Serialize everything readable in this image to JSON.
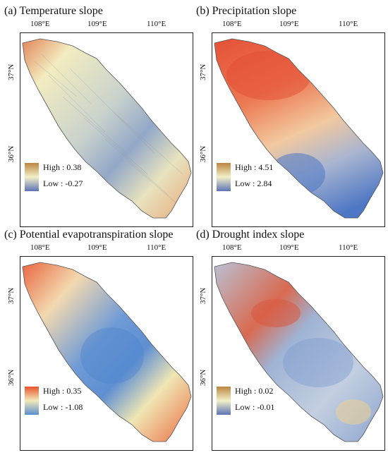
{
  "panels": [
    {
      "title": "(a) Temperature slope",
      "legend": {
        "high_label": "High",
        "high_value": "0.38",
        "low_label": "Low",
        "low_value": "-0.27",
        "ramp_colors": [
          "#b9853f",
          "#f3f0c8",
          "#5d74b6"
        ]
      },
      "longitudes": [
        "108°E",
        "109°E",
        "110°E"
      ],
      "latitudes": [
        "37°N",
        "36°N"
      ]
    },
    {
      "title": "(b) Precipitation slope",
      "legend": {
        "high_label": "High",
        "high_value": "4.51",
        "low_label": "Low",
        "low_value": "2.84",
        "ramp_colors": [
          "#b9853f",
          "#f3f0c8",
          "#5d74b6"
        ]
      },
      "longitudes": [
        "108°E",
        "109°E",
        "110°E"
      ],
      "latitudes": [
        "37°N",
        "36°N"
      ]
    },
    {
      "title": "(c) Potential evapotranspiration slope",
      "legend": {
        "high_label": "High",
        "high_value": "0.35",
        "low_label": "Low",
        "low_value": "-1.08",
        "ramp_colors": [
          "#e9542d",
          "#f2eab8",
          "#5b8fd0"
        ]
      },
      "longitudes": [
        "108°E",
        "109°E",
        "110°E"
      ],
      "latitudes": [
        "37°N",
        "36°N"
      ]
    },
    {
      "title": "(d) Drought index slope",
      "legend": {
        "high_label": "High",
        "high_value": "0.02",
        "low_label": "Low",
        "low_value": "-0.01",
        "ramp_colors": [
          "#b9853f",
          "#f3f0c8",
          "#5d74b6"
        ]
      },
      "longitudes": [
        "108°E",
        "109°E",
        "110°E"
      ],
      "latitudes": [
        "37°N",
        "36°N"
      ]
    }
  ]
}
